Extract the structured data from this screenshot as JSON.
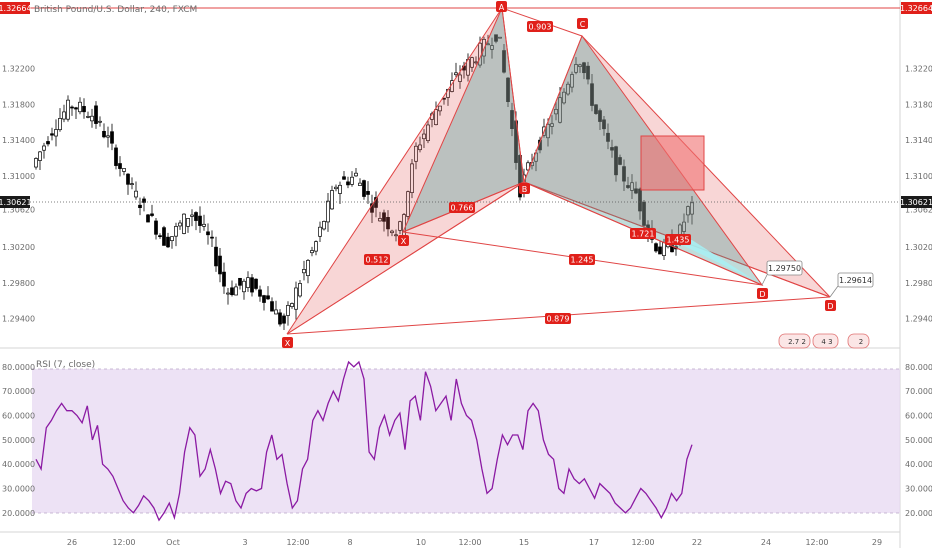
{
  "header": {
    "title": "British Pound/U.S. Dollar, 240, FXCM"
  },
  "chart_data": [
    {
      "type": "candlestick",
      "title": "British Pound/U.S. Dollar, 240, FXCM",
      "ylim": [
        1.2916,
        1.3288
      ],
      "y_ticks": [
        "1.32200",
        "1.31800",
        "1.31400",
        "1.31000",
        "1.30620",
        "1.30200",
        "1.29800",
        "1.29400"
      ],
      "x_ticks": [
        "26",
        "12:00",
        "Oct",
        "3",
        "12:00",
        "8",
        "10",
        "12:00",
        "15",
        "17",
        "12:00",
        "22",
        "24",
        "12:00",
        "29"
      ],
      "price_labels": {
        "top": "1.32664",
        "current": "1.30621"
      },
      "markers": [
        {
          "text": "A",
          "price": 1.3266
        },
        {
          "text": "B",
          "price": 1.3082
        },
        {
          "text": "C",
          "price": 1.3242
        },
        {
          "text": "X",
          "price": 1.3028
        },
        {
          "text": "X",
          "price": 1.2932
        },
        {
          "text": "D",
          "price": 1.2972
        },
        {
          "text": "D",
          "price": 1.2958
        }
      ],
      "ratios": [
        "0.903",
        "0.766",
        "0.512",
        "1.245",
        "1.721",
        "1.435",
        "0.879"
      ],
      "callouts": [
        "1.29750",
        "1.29614"
      ],
      "badges": [
        "2.7 2",
        "4 3",
        "2"
      ],
      "colors": {
        "up": "#ffffff",
        "down": "#000000",
        "pattern_green": "#5aa3a0",
        "pattern_red": "#e35b5b",
        "pattern_line": "#e04545",
        "cyan": "#a8eef2",
        "label_bg": "#e0201a",
        "box": "#f07070"
      }
    },
    {
      "type": "line",
      "title": "RSI (7, close)",
      "ylim": [
        15,
        82
      ],
      "y_ticks": [
        "80.0000",
        "70.0000",
        "60.0000",
        "50.0000",
        "40.0000",
        "30.0000",
        "20.0000"
      ],
      "band": [
        21,
        79
      ],
      "series": [
        {
          "name": "RSI",
          "color": "#8b1aa3",
          "values": [
            42,
            38,
            55,
            58,
            62,
            65,
            62,
            62,
            60,
            57,
            64,
            50,
            56,
            40,
            38,
            35,
            30,
            25,
            22,
            20,
            23,
            27,
            25,
            22,
            17,
            20,
            24,
            18,
            28,
            45,
            55,
            52,
            35,
            38,
            46,
            38,
            28,
            33,
            32,
            25,
            22,
            28,
            30,
            29,
            30,
            45,
            52,
            42,
            44,
            32,
            22,
            25,
            38,
            42,
            58,
            62,
            58,
            65,
            70,
            66,
            75,
            82,
            80,
            82,
            75,
            45,
            42,
            55,
            60,
            52,
            58,
            61,
            46,
            66,
            68,
            58,
            78,
            72,
            62,
            65,
            68,
            58,
            75,
            65,
            60,
            58,
            50,
            38,
            28,
            30,
            42,
            52,
            48,
            52,
            52,
            46,
            62,
            65,
            62,
            50,
            44,
            42,
            30,
            28,
            38,
            34,
            32,
            34,
            30,
            26,
            32,
            30,
            28,
            24,
            22,
            20,
            22,
            26,
            30,
            28,
            25,
            22,
            18,
            22,
            28,
            25,
            28,
            42,
            48
          ]
        }
      ]
    }
  ]
}
